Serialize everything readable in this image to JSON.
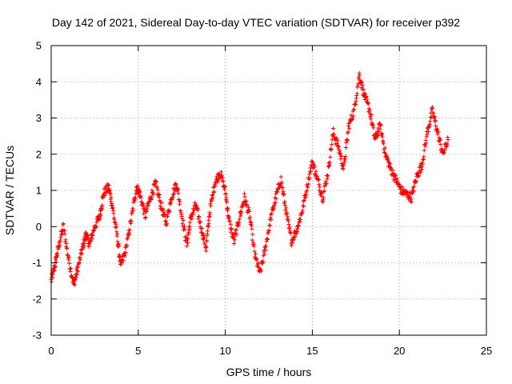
{
  "chart_data": {
    "type": "scatter",
    "title": "Day 142 of 2021, Sidereal Day-to-day VTEC variation (SDTVAR) for receiver p392",
    "xlabel": "GPS time / hours",
    "ylabel": "SDTVAR / TECUs",
    "xlim": [
      0,
      25
    ],
    "ylim": [
      -3,
      5
    ],
    "xticks": [
      "0",
      "5",
      "10",
      "15",
      "20",
      "25"
    ],
    "yticks": [
      "-3",
      "-2",
      "-1",
      "0",
      "1",
      "2",
      "3",
      "4",
      "5"
    ],
    "grid": true,
    "marker": "+",
    "color": "#ff0000",
    "series": [
      {
        "name": "p392",
        "note": "approximate trajectory traced from the plotted '+' markers",
        "x": [
          0.0,
          0.2,
          0.4,
          0.7,
          1.0,
          1.3,
          1.5,
          1.8,
          2.0,
          2.2,
          2.5,
          2.8,
          3.0,
          3.3,
          3.5,
          3.8,
          4.0,
          4.3,
          4.6,
          4.9,
          5.1,
          5.4,
          5.7,
          6.0,
          6.3,
          6.6,
          6.9,
          7.2,
          7.5,
          7.8,
          8.0,
          8.3,
          8.6,
          8.9,
          9.1,
          9.4,
          9.7,
          10.0,
          10.2,
          10.5,
          10.8,
          11.1,
          11.4,
          11.7,
          12.0,
          12.3,
          12.6,
          12.9,
          13.2,
          13.5,
          13.8,
          14.1,
          14.4,
          14.7,
          15.0,
          15.3,
          15.6,
          15.9,
          16.2,
          16.5,
          16.8,
          17.1,
          17.4,
          17.7,
          18.0,
          18.3,
          18.6,
          18.9,
          19.2,
          19.5,
          19.8,
          20.1,
          20.4,
          20.7,
          21.0,
          21.3,
          21.6,
          21.9,
          22.2,
          22.5,
          22.8
        ],
        "y": [
          -1.5,
          -1.1,
          -0.6,
          0.0,
          -0.9,
          -1.6,
          -1.2,
          -0.6,
          -0.2,
          -0.5,
          0.0,
          0.3,
          0.9,
          1.1,
          0.6,
          -0.3,
          -1.1,
          -0.6,
          0.2,
          1.1,
          0.9,
          0.3,
          0.8,
          1.2,
          0.6,
          0.1,
          0.8,
          1.2,
          0.3,
          -0.5,
          0.2,
          0.6,
          0.0,
          -0.6,
          0.4,
          1.2,
          1.5,
          1.0,
          0.2,
          -0.4,
          0.2,
          0.8,
          0.3,
          -0.8,
          -1.3,
          -0.6,
          0.2,
          0.8,
          1.3,
          0.4,
          -0.4,
          -0.1,
          0.4,
          1.1,
          1.8,
          1.3,
          0.8,
          1.5,
          2.6,
          2.2,
          1.6,
          2.8,
          3.2,
          4.2,
          3.6,
          3.2,
          2.4,
          2.8,
          2.0,
          1.6,
          1.3,
          1.0,
          0.9,
          0.8,
          1.4,
          1.7,
          2.6,
          3.2,
          2.6,
          2.0,
          2.4
        ]
      }
    ]
  }
}
